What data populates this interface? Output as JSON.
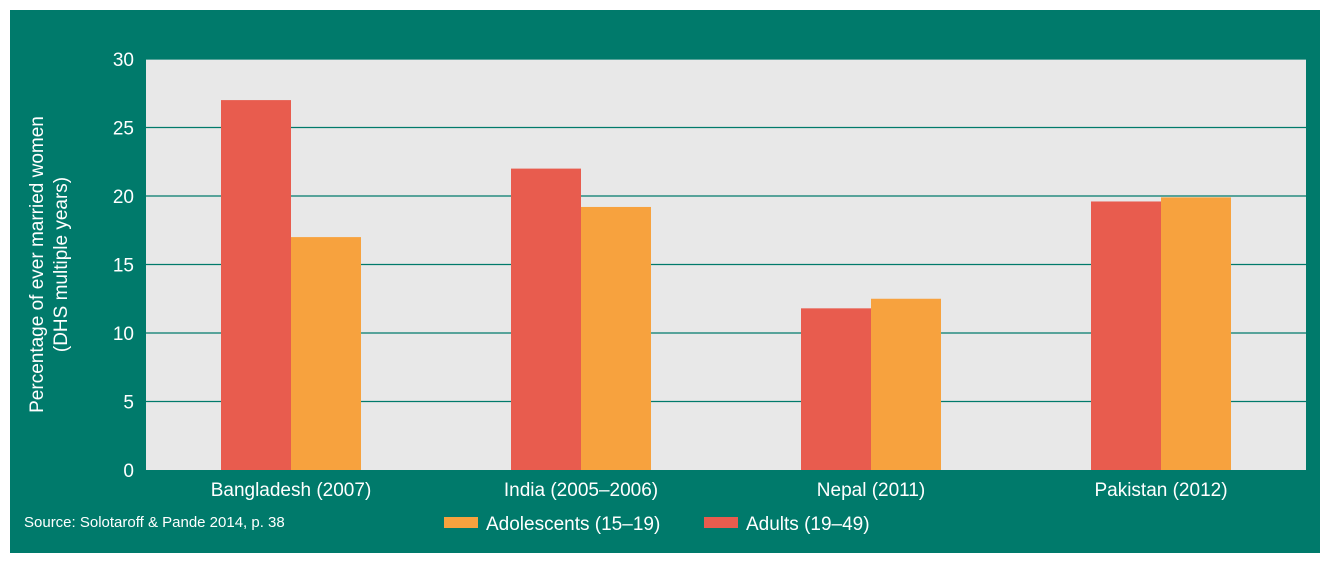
{
  "chart_data": {
    "type": "bar",
    "title": "",
    "xlabel": "",
    "ylabel_lines": [
      "Percentage of ever married women",
      "(DHS multiple years)"
    ],
    "ylim": [
      0,
      30
    ],
    "yticks": [
      0,
      5,
      10,
      15,
      20,
      25,
      30
    ],
    "grid": true,
    "categories": [
      "Bangladesh (2007)",
      "India (2005–2006)",
      "Nepal (2011)",
      "Pakistan (2012)"
    ],
    "series": [
      {
        "name": "Adults (19–49)",
        "color": "#e85c4e",
        "values": [
          27.0,
          22.0,
          11.8,
          19.6
        ]
      },
      {
        "name": "Adolescents (15–19)",
        "color": "#f7a23e",
        "values": [
          17.0,
          19.2,
          12.5,
          19.9
        ]
      }
    ],
    "legend_order": [
      1,
      0
    ],
    "legend_placement": "bottom-center",
    "source": "Source: Solotaroff & Pande 2014, p. 38"
  },
  "colors": {
    "frame": "#007a6b",
    "plot_background": "#e8e8e8",
    "gridline": "#007a6b",
    "text": "#ffffff"
  }
}
